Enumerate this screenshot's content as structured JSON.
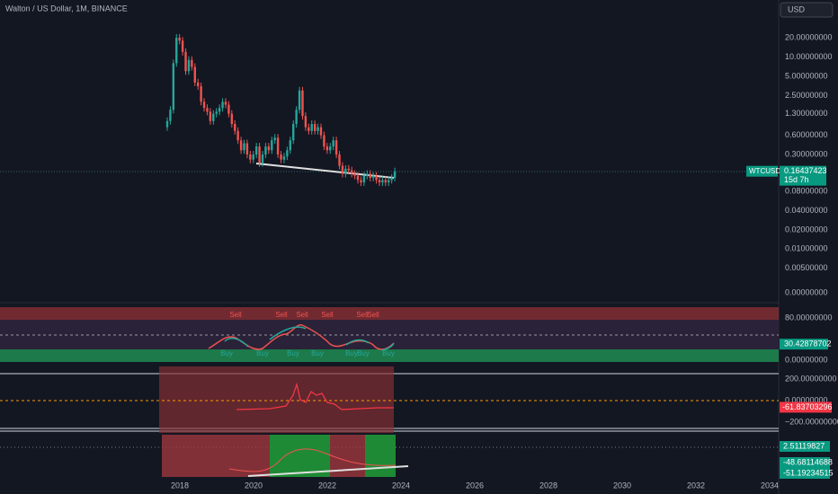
{
  "header": {
    "title": "Walton / US Dollar, 1M, BINANCE",
    "currency": "USD"
  },
  "price_chart": {
    "log_scale": true,
    "closes": [
      1.0,
      1.5,
      8,
      20,
      18,
      12,
      6,
      9,
      7,
      4,
      3.5,
      2,
      1.6,
      1.4,
      1.0,
      1.3,
      1.4,
      1.6,
      2.0,
      1.8,
      1.3,
      0.9,
      0.7,
      0.5,
      0.35,
      0.45,
      0.3,
      0.25,
      0.3,
      0.4,
      0.22,
      0.3,
      0.4,
      0.35,
      0.5,
      0.55,
      0.3,
      0.25,
      0.28,
      0.35,
      0.5,
      0.9,
      1.5,
      3.0,
      1.2,
      0.8,
      0.7,
      0.9,
      0.7,
      0.8,
      0.6,
      0.4,
      0.35,
      0.4,
      0.5,
      0.3,
      0.2,
      0.15,
      0.18,
      0.17,
      0.15,
      0.14,
      0.12,
      0.11,
      0.14,
      0.15,
      0.13,
      0.14,
      0.12,
      0.11,
      0.12,
      0.11,
      0.12,
      0.13,
      0.164
    ],
    "yticks": [
      {
        "value": 20,
        "label": "20.00000000"
      },
      {
        "value": 10,
        "label": "10.00000000"
      },
      {
        "value": 5,
        "label": "5.00000000"
      },
      {
        "value": 2.5,
        "label": "2.50000000"
      },
      {
        "value": 1.3,
        "label": "1.30000000"
      },
      {
        "value": 0.6,
        "label": "0.60000000"
      },
      {
        "value": 0.3,
        "label": "0.30000000"
      },
      {
        "value": 0.08,
        "label": "0.08000000"
      },
      {
        "value": 0.04,
        "label": "0.04000000"
      },
      {
        "value": 0.02,
        "label": "0.02000000"
      },
      {
        "value": 0.01,
        "label": "0.01000000"
      },
      {
        "value": 0.005,
        "label": "0.00500000"
      }
    ],
    "bottom_label": "0.00000000",
    "symbol": "WTCUSD",
    "last_price": 0.16437423,
    "countdown": "15d 7h"
  },
  "xticks": [
    2018,
    2020,
    2022,
    2024,
    2026,
    2028,
    2030,
    2032,
    2034
  ],
  "oscillator": {
    "yticks": [
      {
        "value": 80,
        "label": "80.00000000"
      },
      {
        "value": 0,
        "label": "0.00000000"
      }
    ],
    "current": 30.42878702,
    "sell_labels": [
      "Sell",
      "Sell",
      "Sell",
      "Sell",
      "Sell",
      "Sell"
    ],
    "buy_labels": [
      "Buy",
      "Buy",
      "Buy",
      "Buy",
      "Buy",
      "Buy",
      "Buy"
    ]
  },
  "cci": {
    "yticks": [
      {
        "value": 200,
        "label": "200.00000000"
      },
      {
        "value": 0,
        "label": "0.00000000"
      },
      {
        "value": -200,
        "label": "−200.00000000"
      }
    ],
    "current": -61.83703296
  },
  "macd": {
    "histogram": 2.51119827,
    "signal": -48.68114688,
    "macd": -51.19234515
  }
}
